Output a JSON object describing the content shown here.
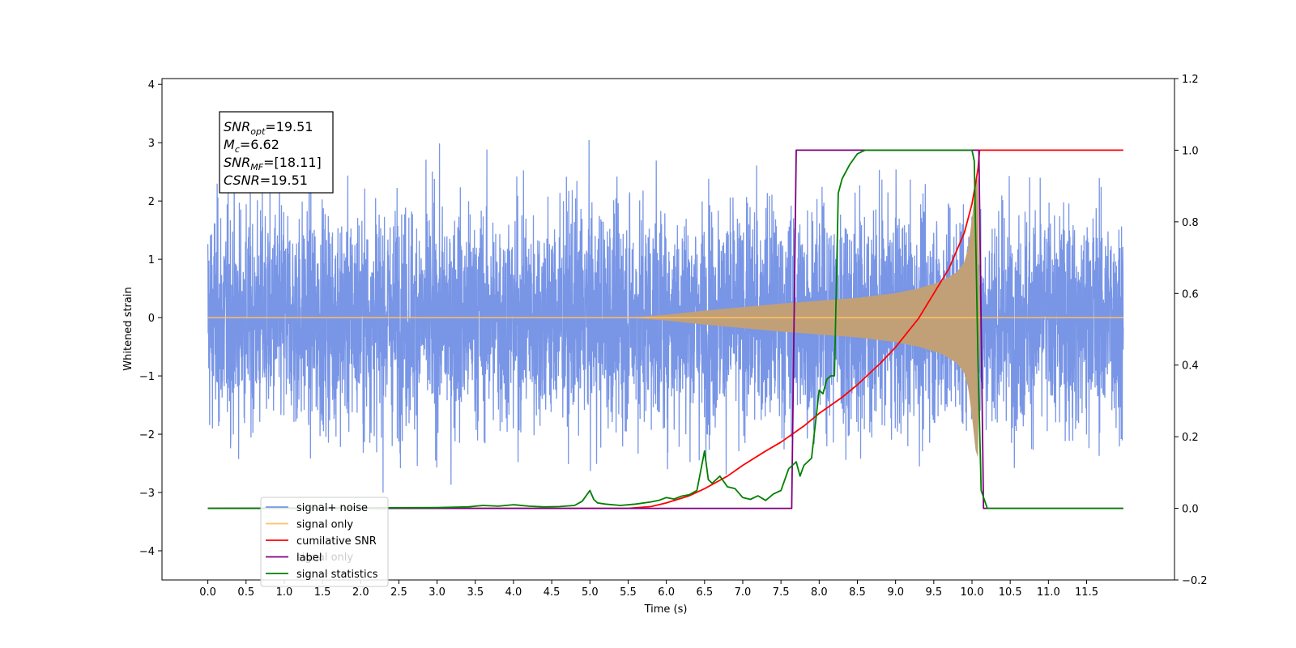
{
  "chart_data": {
    "type": "line",
    "xlabel": "Time (s)",
    "ylabel": "Whitened strain",
    "xlim": [
      -0.6,
      12.65
    ],
    "ylim_left": [
      -4.5,
      4.1
    ],
    "ylim_right": [
      -0.2,
      1.2
    ],
    "x_ticks": [
      0.0,
      0.5,
      1.0,
      1.5,
      2.0,
      2.5,
      3.0,
      3.5,
      4.0,
      4.5,
      5.0,
      5.5,
      6.0,
      6.5,
      7.0,
      7.5,
      8.0,
      8.5,
      9.0,
      9.5,
      10.0,
      10.5,
      11.0,
      11.5
    ],
    "x_tick_labels": [
      "0.0",
      "0.5",
      "1.0",
      "1.5",
      "2.0",
      "2.5",
      "3.0",
      "3.5",
      "4.0",
      "4.5",
      "5.0",
      "5.5",
      "6.0",
      "6.5",
      "7.0",
      "7.5",
      "8.0",
      "8.5",
      "9.0",
      "9.5",
      "10.0",
      "10.5",
      "11.0",
      "11.5"
    ],
    "y_left_ticks": [
      4,
      3,
      2,
      1,
      0,
      -1,
      -2,
      -3,
      -4
    ],
    "y_left_tick_labels": [
      "4",
      "3",
      "2",
      "1",
      "0",
      "−1",
      "−2",
      "−3",
      "−4"
    ],
    "y_right_ticks": [
      1.2,
      1.0,
      0.8,
      0.6,
      0.4,
      0.2,
      0.0,
      -0.2
    ],
    "y_right_tick_labels": [
      "1.2",
      "1.0",
      "0.8",
      "0.6",
      "0.4",
      "0.2",
      "0.0",
      "−0.2"
    ],
    "annotation": {
      "lines": [
        {
          "sym": "SNR",
          "sub": "opt",
          "val": "=19.51"
        },
        {
          "sym": "M",
          "sub": "c",
          "val": "=6.62"
        },
        {
          "sym": "SNR",
          "sub": "MF",
          "val": "=[18.11]"
        },
        {
          "sym": "CSNR",
          "sub": "",
          "val": "=19.51"
        }
      ]
    },
    "series": [
      {
        "name": "signal+ noise",
        "color": "#7895e6",
        "axis": "left",
        "x_range": [
          0.0,
          11.98
        ],
        "envelope_typical": 1.8,
        "envelope_peak": 3.7
      },
      {
        "name": "signal only",
        "color": "#c1a078",
        "axis": "left",
        "x": [
          0.0,
          5.5,
          6.0,
          6.5,
          7.0,
          7.5,
          8.0,
          8.5,
          9.0,
          9.3,
          9.6,
          9.8,
          9.9,
          9.95,
          10.0,
          10.05,
          10.08,
          10.1,
          10.15,
          11.98
        ],
        "amplitude": [
          0.0,
          0.0,
          0.05,
          0.12,
          0.18,
          0.24,
          0.29,
          0.34,
          0.42,
          0.5,
          0.62,
          0.78,
          0.95,
          1.2,
          1.7,
          2.3,
          2.4,
          0.0,
          0.0,
          0.0
        ]
      },
      {
        "name": "cumilative SNR",
        "color": "#ff0000",
        "axis": "right",
        "x": [
          0.0,
          5.5,
          5.8,
          6.0,
          6.3,
          6.5,
          6.8,
          7.0,
          7.3,
          7.5,
          7.8,
          8.0,
          8.3,
          8.5,
          8.8,
          9.0,
          9.3,
          9.5,
          9.7,
          9.9,
          10.0,
          10.05,
          10.08,
          10.1,
          11.98
        ],
        "values": [
          0.0,
          0.0,
          0.005,
          0.015,
          0.035,
          0.055,
          0.09,
          0.12,
          0.16,
          0.185,
          0.23,
          0.265,
          0.31,
          0.345,
          0.405,
          0.45,
          0.53,
          0.6,
          0.67,
          0.77,
          0.85,
          0.91,
          0.95,
          1.0,
          1.0
        ]
      },
      {
        "name": "label",
        "color": "#800080",
        "axis": "right",
        "x": [
          0.0,
          7.64,
          7.7,
          10.09,
          10.15,
          11.98
        ],
        "values": [
          0.0,
          0.0,
          1.0,
          1.0,
          0.0,
          0.0
        ]
      },
      {
        "name": "signal statistics",
        "color": "#008000",
        "axis": "right",
        "x": [
          0.0,
          3.0,
          3.4,
          3.6,
          3.8,
          4.0,
          4.2,
          4.4,
          4.6,
          4.8,
          4.9,
          5.0,
          5.05,
          5.1,
          5.2,
          5.4,
          5.6,
          5.8,
          5.9,
          6.0,
          6.1,
          6.2,
          6.3,
          6.4,
          6.5,
          6.55,
          6.6,
          6.7,
          6.8,
          6.9,
          7.0,
          7.1,
          7.2,
          7.3,
          7.4,
          7.5,
          7.6,
          7.7,
          7.75,
          7.8,
          7.9,
          8.0,
          8.05,
          8.1,
          8.15,
          8.2,
          8.25,
          8.3,
          8.4,
          8.5,
          8.6,
          8.7,
          9.0,
          9.5,
          10.0,
          10.03,
          10.08,
          10.12,
          10.2,
          11.98
        ],
        "values": [
          0.0,
          0.002,
          0.004,
          0.008,
          0.006,
          0.01,
          0.006,
          0.004,
          0.005,
          0.008,
          0.02,
          0.05,
          0.025,
          0.015,
          0.012,
          0.008,
          0.012,
          0.018,
          0.022,
          0.03,
          0.026,
          0.034,
          0.038,
          0.05,
          0.16,
          0.08,
          0.07,
          0.09,
          0.06,
          0.055,
          0.03,
          0.025,
          0.035,
          0.022,
          0.04,
          0.05,
          0.11,
          0.13,
          0.09,
          0.12,
          0.14,
          0.33,
          0.32,
          0.36,
          0.37,
          0.37,
          0.88,
          0.92,
          0.96,
          0.99,
          1.0,
          1.0,
          1.0,
          1.0,
          1.0,
          0.97,
          0.4,
          0.05,
          0.0,
          0.0
        ]
      }
    ],
    "legend": {
      "placement": "lower-left",
      "entries": [
        {
          "label": "signal+ noise",
          "color": "#7895e6"
        },
        {
          "label": "signal only",
          "color": "#ffc061"
        },
        {
          "label": "cumilative SNR",
          "color": "#ff0000"
        },
        {
          "label": "label",
          "color": "#800080"
        },
        {
          "label": "signal statistics",
          "color": "#008000"
        }
      ],
      "hidden_entry": {
        "label": "signal only",
        "color": "#cccccc"
      }
    }
  }
}
